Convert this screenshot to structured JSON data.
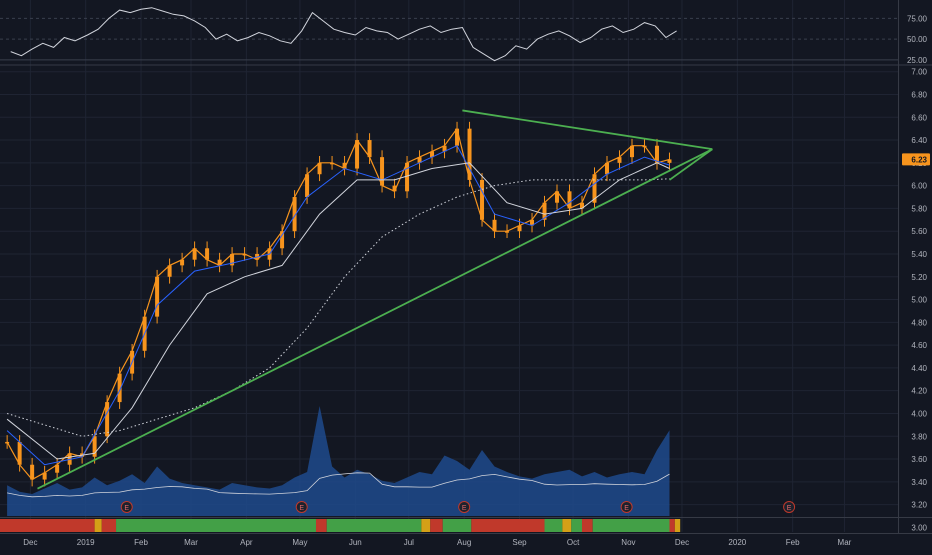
{
  "chart_data": [
    {
      "type": "line",
      "panel": "oscillator",
      "y_ticks": [
        "75.00",
        "50.00",
        "25.00"
      ],
      "ylim": [
        20,
        90
      ],
      "series": [
        {
          "color": "#d1d4dc",
          "x": [
            "2018-11-20",
            "2018-11-26",
            "2018-12-02",
            "2018-12-08",
            "2018-12-14",
            "2018-12-20",
            "2018-12-26",
            "2019-01-02",
            "2019-01-08",
            "2019-01-14",
            "2019-01-20",
            "2019-01-26",
            "2019-02-01",
            "2019-02-07",
            "2019-02-13",
            "2019-02-19",
            "2019-02-25",
            "2019-03-03",
            "2019-03-09",
            "2019-03-15",
            "2019-03-21",
            "2019-03-27",
            "2019-04-02",
            "2019-04-08",
            "2019-04-14",
            "2019-04-20",
            "2019-04-26",
            "2019-05-02",
            "2019-05-08",
            "2019-05-14",
            "2019-05-20",
            "2019-05-26",
            "2019-06-01",
            "2019-06-07",
            "2019-06-13",
            "2019-06-19",
            "2019-06-25",
            "2019-07-01",
            "2019-07-07",
            "2019-07-13",
            "2019-07-19",
            "2019-07-25",
            "2019-07-31",
            "2019-08-06",
            "2019-08-12",
            "2019-08-18",
            "2019-08-24",
            "2019-08-30",
            "2019-09-05",
            "2019-09-11",
            "2019-09-17",
            "2019-09-23",
            "2019-09-29",
            "2019-10-05",
            "2019-10-11",
            "2019-10-17",
            "2019-10-23",
            "2019-10-29",
            "2019-11-04",
            "2019-11-10",
            "2019-11-16",
            "2019-11-22",
            "2019-11-28"
          ],
          "values": [
            35,
            30,
            38,
            45,
            40,
            52,
            48,
            55,
            62,
            75,
            85,
            82,
            86,
            88,
            84,
            80,
            78,
            72,
            64,
            50,
            56,
            48,
            52,
            58,
            54,
            48,
            45,
            60,
            82,
            72,
            62,
            58,
            55,
            64,
            60,
            58,
            50,
            56,
            62,
            66,
            58,
            62,
            64,
            40,
            32,
            24,
            30,
            42,
            38,
            50,
            56,
            60,
            54,
            46,
            52,
            62,
            66,
            58,
            62,
            70,
            66,
            52,
            60
          ]
        }
      ]
    },
    {
      "type": "line",
      "panel": "price",
      "ylim": [
        3.1,
        7.05
      ],
      "y_ticks": [
        "7.00",
        "6.80",
        "6.60",
        "6.40",
        "6.20",
        "6.00",
        "5.80",
        "5.60",
        "5.40",
        "5.20",
        "5.00",
        "4.80",
        "4.60",
        "4.40",
        "4.20",
        "4.00",
        "3.80",
        "3.60",
        "3.40",
        "3.20",
        "3.00"
      ],
      "x_ticks": [
        "Dec",
        "2019",
        "Feb",
        "Mar",
        "Apr",
        "May",
        "Jun",
        "Jul",
        "Aug",
        "Sep",
        "Oct",
        "Nov",
        "Dec",
        "2020",
        "Feb",
        "Mar"
      ],
      "last_price": "6.23",
      "series": [
        {
          "role": "price",
          "color": "#f7941d",
          "x": [
            "2018-11-18",
            "2018-11-25",
            "2018-12-02",
            "2018-12-09",
            "2018-12-16",
            "2018-12-23",
            "2018-12-30",
            "2019-01-06",
            "2019-01-13",
            "2019-01-20",
            "2019-01-27",
            "2019-02-03",
            "2019-02-10",
            "2019-02-17",
            "2019-02-24",
            "2019-03-03",
            "2019-03-10",
            "2019-03-17",
            "2019-03-24",
            "2019-03-31",
            "2019-04-07",
            "2019-04-14",
            "2019-04-21",
            "2019-04-28",
            "2019-05-05",
            "2019-05-12",
            "2019-05-19",
            "2019-05-26",
            "2019-06-02",
            "2019-06-09",
            "2019-06-16",
            "2019-06-23",
            "2019-06-30",
            "2019-07-07",
            "2019-07-14",
            "2019-07-21",
            "2019-07-28",
            "2019-08-04",
            "2019-08-11",
            "2019-08-18",
            "2019-08-25",
            "2019-09-01",
            "2019-09-08",
            "2019-09-15",
            "2019-09-22",
            "2019-09-29",
            "2019-10-06",
            "2019-10-13",
            "2019-10-20",
            "2019-10-27",
            "2019-11-03",
            "2019-11-10",
            "2019-11-17",
            "2019-11-24"
          ],
          "values": [
            3.75,
            3.55,
            3.42,
            3.48,
            3.55,
            3.65,
            3.62,
            3.8,
            4.1,
            4.35,
            4.55,
            4.85,
            5.2,
            5.3,
            5.35,
            5.45,
            5.35,
            5.3,
            5.4,
            5.4,
            5.35,
            5.45,
            5.6,
            5.9,
            6.1,
            6.2,
            6.2,
            6.15,
            6.4,
            6.25,
            6.0,
            5.95,
            6.2,
            6.25,
            6.3,
            6.35,
            6.5,
            6.05,
            5.7,
            5.6,
            5.6,
            5.65,
            5.7,
            5.85,
            5.95,
            5.8,
            5.85,
            6.1,
            6.2,
            6.25,
            6.35,
            6.35,
            6.2,
            6.23
          ]
        },
        {
          "role": "moving-average-fast",
          "color": "#2962ff",
          "x": [
            "2018-11-18",
            "2018-12-09",
            "2018-12-30",
            "2019-01-20",
            "2019-02-10",
            "2019-03-03",
            "2019-03-24",
            "2019-04-14",
            "2019-05-05",
            "2019-05-26",
            "2019-06-16",
            "2019-07-07",
            "2019-07-28",
            "2019-08-18",
            "2019-09-08",
            "2019-09-29",
            "2019-10-20",
            "2019-11-10",
            "2019-11-24"
          ],
          "values": [
            3.85,
            3.55,
            3.62,
            4.2,
            4.95,
            5.25,
            5.32,
            5.4,
            5.9,
            6.15,
            6.05,
            6.2,
            6.35,
            5.75,
            5.65,
            5.85,
            6.1,
            6.25,
            6.18
          ]
        },
        {
          "role": "moving-average-mid",
          "color": "#d1d4dc",
          "x": [
            "2018-11-18",
            "2018-12-16",
            "2019-01-06",
            "2019-01-27",
            "2019-02-17",
            "2019-03-10",
            "2019-03-31",
            "2019-04-21",
            "2019-05-12",
            "2019-06-02",
            "2019-06-23",
            "2019-07-14",
            "2019-08-04",
            "2019-08-25",
            "2019-09-15",
            "2019-10-06",
            "2019-10-27",
            "2019-11-17",
            "2019-11-24"
          ],
          "values": [
            3.95,
            3.6,
            3.65,
            4.05,
            4.6,
            5.05,
            5.2,
            5.3,
            5.75,
            6.05,
            6.05,
            6.15,
            6.2,
            5.85,
            5.75,
            5.8,
            6.05,
            6.2,
            6.15
          ]
        },
        {
          "role": "moving-average-slow",
          "color": "#d1d4dc",
          "dashed": true,
          "x": [
            "2018-11-18",
            "2018-12-09",
            "2018-12-30",
            "2019-01-20",
            "2019-02-10",
            "2019-03-03",
            "2019-03-24",
            "2019-04-14",
            "2019-05-05",
            "2019-05-26",
            "2019-06-16",
            "2019-07-07",
            "2019-07-28",
            "2019-08-18",
            "2019-09-08",
            "2019-09-29",
            "2019-10-20",
            "2019-11-10",
            "2019-11-24"
          ],
          "values": [
            4.0,
            3.9,
            3.8,
            3.85,
            3.95,
            4.05,
            4.2,
            4.4,
            4.75,
            5.2,
            5.55,
            5.75,
            5.9,
            6.0,
            6.05,
            6.05,
            6.05,
            6.05,
            6.06
          ]
        }
      ],
      "trendlines": [
        {
          "color": "#4caf50",
          "points": [
            [
              "2018-12-05",
              3.34
            ],
            [
              "2019-12-18",
              6.32
            ]
          ]
        },
        {
          "color": "#4caf50",
          "points": [
            [
              "2019-07-31",
              6.66
            ],
            [
              "2019-12-18",
              6.32
            ]
          ]
        },
        {
          "color": "#4caf50",
          "points": [
            [
              "2019-11-24",
              6.05
            ],
            [
              "2019-12-18",
              6.32
            ]
          ]
        }
      ],
      "volume": {
        "color": "#1e4a8c",
        "x": [
          "2018-11-18",
          "2018-11-25",
          "2018-12-02",
          "2018-12-09",
          "2018-12-16",
          "2018-12-23",
          "2018-12-30",
          "2019-01-06",
          "2019-01-13",
          "2019-01-20",
          "2019-01-27",
          "2019-02-03",
          "2019-02-10",
          "2019-02-17",
          "2019-02-24",
          "2019-03-03",
          "2019-03-10",
          "2019-03-17",
          "2019-03-24",
          "2019-03-31",
          "2019-04-07",
          "2019-04-14",
          "2019-04-21",
          "2019-04-28",
          "2019-05-05",
          "2019-05-12",
          "2019-05-19",
          "2019-05-26",
          "2019-06-02",
          "2019-06-09",
          "2019-06-16",
          "2019-06-23",
          "2019-06-30",
          "2019-07-07",
          "2019-07-14",
          "2019-07-21",
          "2019-07-28",
          "2019-08-04",
          "2019-08-11",
          "2019-08-18",
          "2019-08-25",
          "2019-09-01",
          "2019-09-08",
          "2019-09-15",
          "2019-09-22",
          "2019-09-29",
          "2019-10-06",
          "2019-10-13",
          "2019-10-20",
          "2019-10-27",
          "2019-11-03",
          "2019-11-10",
          "2019-11-17",
          "2019-11-24"
        ],
        "values": [
          28,
          22,
          20,
          25,
          30,
          24,
          26,
          35,
          28,
          32,
          38,
          30,
          45,
          34,
          30,
          28,
          26,
          24,
          30,
          28,
          26,
          25,
          28,
          35,
          40,
          100,
          45,
          35,
          42,
          38,
          32,
          30,
          35,
          40,
          38,
          55,
          50,
          42,
          60,
          45,
          40,
          36,
          34,
          38,
          40,
          42,
          36,
          40,
          35,
          38,
          40,
          38,
          60,
          78
        ]
      },
      "earnings_markers": [
        "E",
        "E",
        "E",
        "E",
        "E"
      ],
      "earnings_dates": [
        "2019-01-24",
        "2019-05-02",
        "2019-08-01",
        "2019-10-31",
        "2020-01-30"
      ],
      "status_bar": [
        {
          "from": "2018-11-14",
          "to": "2019-01-06",
          "color": "#c0392b"
        },
        {
          "from": "2019-01-06",
          "to": "2019-01-10",
          "color": "#d4a017"
        },
        {
          "from": "2019-01-10",
          "to": "2019-01-18",
          "color": "#c0392b"
        },
        {
          "from": "2019-01-18",
          "to": "2019-05-10",
          "color": "#43a047"
        },
        {
          "from": "2019-05-10",
          "to": "2019-05-16",
          "color": "#c0392b"
        },
        {
          "from": "2019-05-16",
          "to": "2019-07-08",
          "color": "#43a047"
        },
        {
          "from": "2019-07-08",
          "to": "2019-07-13",
          "color": "#d4a017"
        },
        {
          "from": "2019-07-13",
          "to": "2019-07-20",
          "color": "#c0392b"
        },
        {
          "from": "2019-07-20",
          "to": "2019-08-05",
          "color": "#43a047"
        },
        {
          "from": "2019-08-05",
          "to": "2019-09-15",
          "color": "#c0392b"
        },
        {
          "from": "2019-09-15",
          "to": "2019-09-25",
          "color": "#43a047"
        },
        {
          "from": "2019-09-25",
          "to": "2019-09-30",
          "color": "#d4a017"
        },
        {
          "from": "2019-09-30",
          "to": "2019-10-06",
          "color": "#43a047"
        },
        {
          "from": "2019-10-06",
          "to": "2019-10-12",
          "color": "#c0392b"
        },
        {
          "from": "2019-10-12",
          "to": "2019-11-24",
          "color": "#43a047"
        },
        {
          "from": "2019-11-24",
          "to": "2019-11-27",
          "color": "#c0392b"
        },
        {
          "from": "2019-11-27",
          "to": "2019-11-30",
          "color": "#d4a017"
        }
      ]
    }
  ]
}
